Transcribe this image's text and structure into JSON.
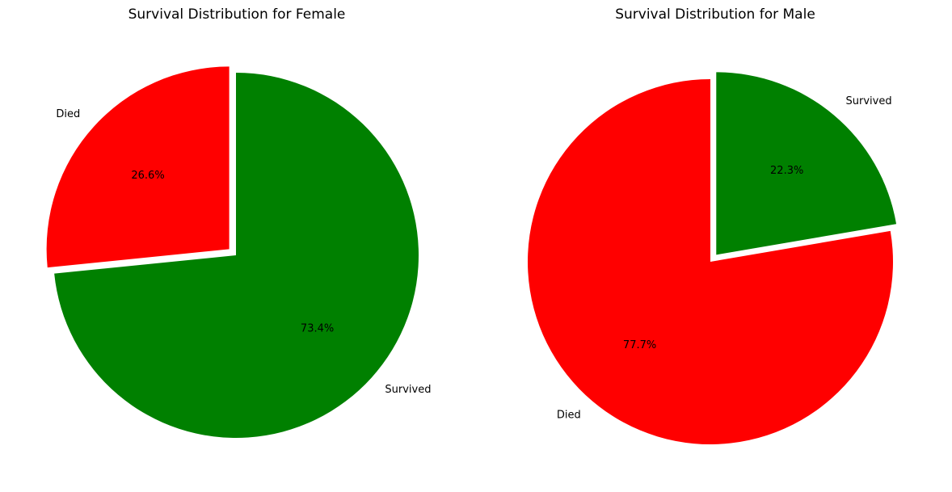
{
  "chart_data": [
    {
      "type": "pie",
      "title": "Survival Distribution for Female",
      "slices": [
        {
          "label": "Died",
          "value": 26.6,
          "pct_label": "26.6%",
          "color": "#ff0000"
        },
        {
          "label": "Survived",
          "value": 73.4,
          "pct_label": "73.4%",
          "color": "#008000"
        }
      ],
      "exploded": "Died",
      "start_angle": 90,
      "direction": "counterclockwise"
    },
    {
      "type": "pie",
      "title": "Survival Distribution for Male",
      "slices": [
        {
          "label": "Died",
          "value": 77.7,
          "pct_label": "77.7%",
          "color": "#ff0000"
        },
        {
          "label": "Survived",
          "value": 22.3,
          "pct_label": "22.3%",
          "color": "#008000"
        }
      ],
      "exploded": "Survived",
      "start_angle": 90,
      "direction": "counterclockwise"
    }
  ]
}
